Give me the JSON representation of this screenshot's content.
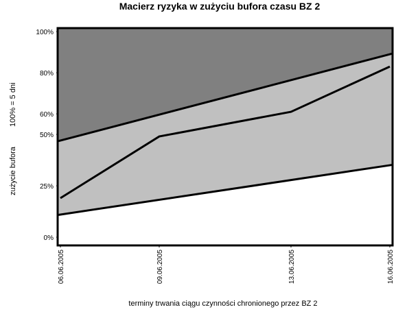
{
  "chart_data": {
    "type": "line",
    "title": "Macierz ryzyka w zużyciu bufora czasu BZ 2",
    "x_label": "terminy trwania ciągu czynności chronionego przez BZ 2",
    "y_label": "zużycie bufora",
    "y_label_note": "100% = 5 dni",
    "x": [
      "06.06.2005",
      "09.06.2005",
      "13.06.2005",
      "16.06.2005"
    ],
    "xlim": [
      "06.06.2005",
      "16.06.2005"
    ],
    "xticks": [
      "06.06.2005",
      "09.06.2005",
      "13.06.2005",
      "16.06.2005"
    ],
    "ylim": [
      -4,
      101.7
    ],
    "yticks": [
      {
        "value": 0,
        "label": "0%"
      },
      {
        "value": 25,
        "label": "25%"
      },
      {
        "value": 50,
        "label": "50%"
      },
      {
        "value": 60,
        "label": "60%"
      },
      {
        "value": 80,
        "label": "80%"
      },
      {
        "value": 100,
        "label": "100%"
      }
    ],
    "series": [
      {
        "color": "#000000",
        "values": [
          19,
          49,
          61,
          83
        ]
      }
    ],
    "zones": {
      "x": [
        "06.06.2005",
        "16.06.2005"
      ],
      "upper": [
        47,
        89
      ],
      "lower": [
        11,
        35
      ],
      "colors": [
        "#808080",
        "#c0c0c0",
        "#ffffff"
      ]
    }
  }
}
